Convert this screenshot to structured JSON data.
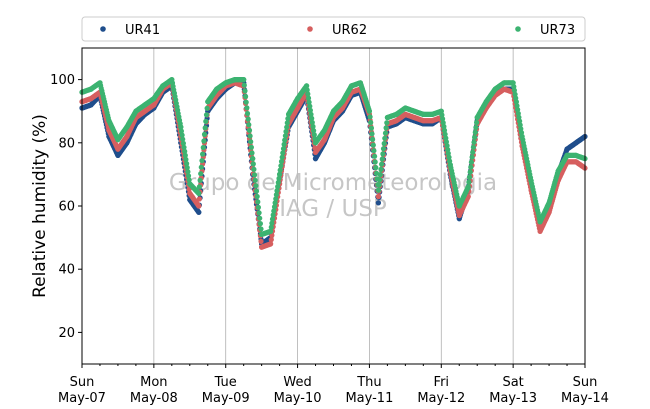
{
  "chart_data": {
    "type": "scatter",
    "ylabel": "Relative humidity (%)",
    "ylim": [
      10,
      110
    ],
    "yticks": [
      20,
      40,
      60,
      80,
      100
    ],
    "xlim": [
      "2017-05-07 00:00",
      "2017-05-14 00:00"
    ],
    "x_tick_labels": [
      {
        "day": "Sun",
        "date": "May-07"
      },
      {
        "day": "Mon",
        "date": "May-08"
      },
      {
        "day": "Tue",
        "date": "May-09"
      },
      {
        "day": "Wed",
        "date": "May-10"
      },
      {
        "day": "Thu",
        "date": "May-11"
      },
      {
        "day": "Fri",
        "date": "May-12"
      },
      {
        "day": "Sat",
        "date": "May-13"
      },
      {
        "day": "Sun",
        "date": "May-14"
      }
    ],
    "grid": "vertical at day boundaries",
    "legend_placement": "top, outside plot",
    "watermark": [
      "Grupo de Micrometeorologia",
      "IAG / USP"
    ],
    "x_hours": [
      0,
      3,
      6,
      9,
      12,
      15,
      18,
      21,
      24,
      27,
      30,
      33,
      36,
      39,
      42,
      45,
      48,
      51,
      54,
      57,
      60,
      63,
      66,
      69,
      72,
      75,
      78,
      81,
      84,
      87,
      90,
      93,
      96,
      99,
      102,
      105,
      108,
      111,
      114,
      117,
      120,
      123,
      126,
      129,
      132,
      135,
      138,
      141,
      144,
      147,
      150,
      153,
      156,
      159,
      162,
      165,
      168
    ],
    "series": [
      {
        "name": "UR41",
        "color": "#1f4e8c",
        "values": [
          91,
          92,
          95,
          82,
          76,
          80,
          86,
          89,
          91,
          96,
          98,
          80,
          62,
          58,
          90,
          94,
          97,
          99,
          99,
          70,
          48,
          50,
          68,
          85,
          90,
          95,
          75,
          80,
          87,
          90,
          95,
          96,
          87,
          61,
          85,
          86,
          88,
          87,
          86,
          86,
          88,
          70,
          56,
          65,
          87,
          92,
          96,
          97,
          97,
          80,
          66,
          54,
          60,
          70,
          78,
          80,
          82
        ]
      },
      {
        "name": "UR62",
        "color": "#d65f5f",
        "values": [
          93,
          94,
          96,
          84,
          78,
          82,
          88,
          90,
          92,
          97,
          99,
          82,
          64,
          60,
          91,
          95,
          98,
          99,
          98,
          72,
          47,
          48,
          67,
          86,
          91,
          96,
          77,
          81,
          88,
          91,
          96,
          97,
          89,
          63,
          86,
          87,
          89,
          88,
          87,
          87,
          88,
          71,
          57,
          63,
          86,
          91,
          95,
          97,
          96,
          79,
          65,
          52,
          58,
          68,
          74,
          74,
          72
        ]
      },
      {
        "name": "UR73",
        "color": "#3cb371",
        "values": [
          96,
          97,
          99,
          87,
          81,
          85,
          90,
          92,
          94,
          98,
          100,
          85,
          67,
          64,
          93,
          97,
          99,
          100,
          100,
          75,
          51,
          52,
          70,
          89,
          94,
          98,
          80,
          84,
          90,
          93,
          98,
          99,
          90,
          65,
          88,
          89,
          91,
          90,
          89,
          89,
          90,
          73,
          60,
          66,
          88,
          93,
          97,
          99,
          99,
          82,
          68,
          55,
          61,
          71,
          76,
          76,
          75
        ]
      }
    ]
  }
}
